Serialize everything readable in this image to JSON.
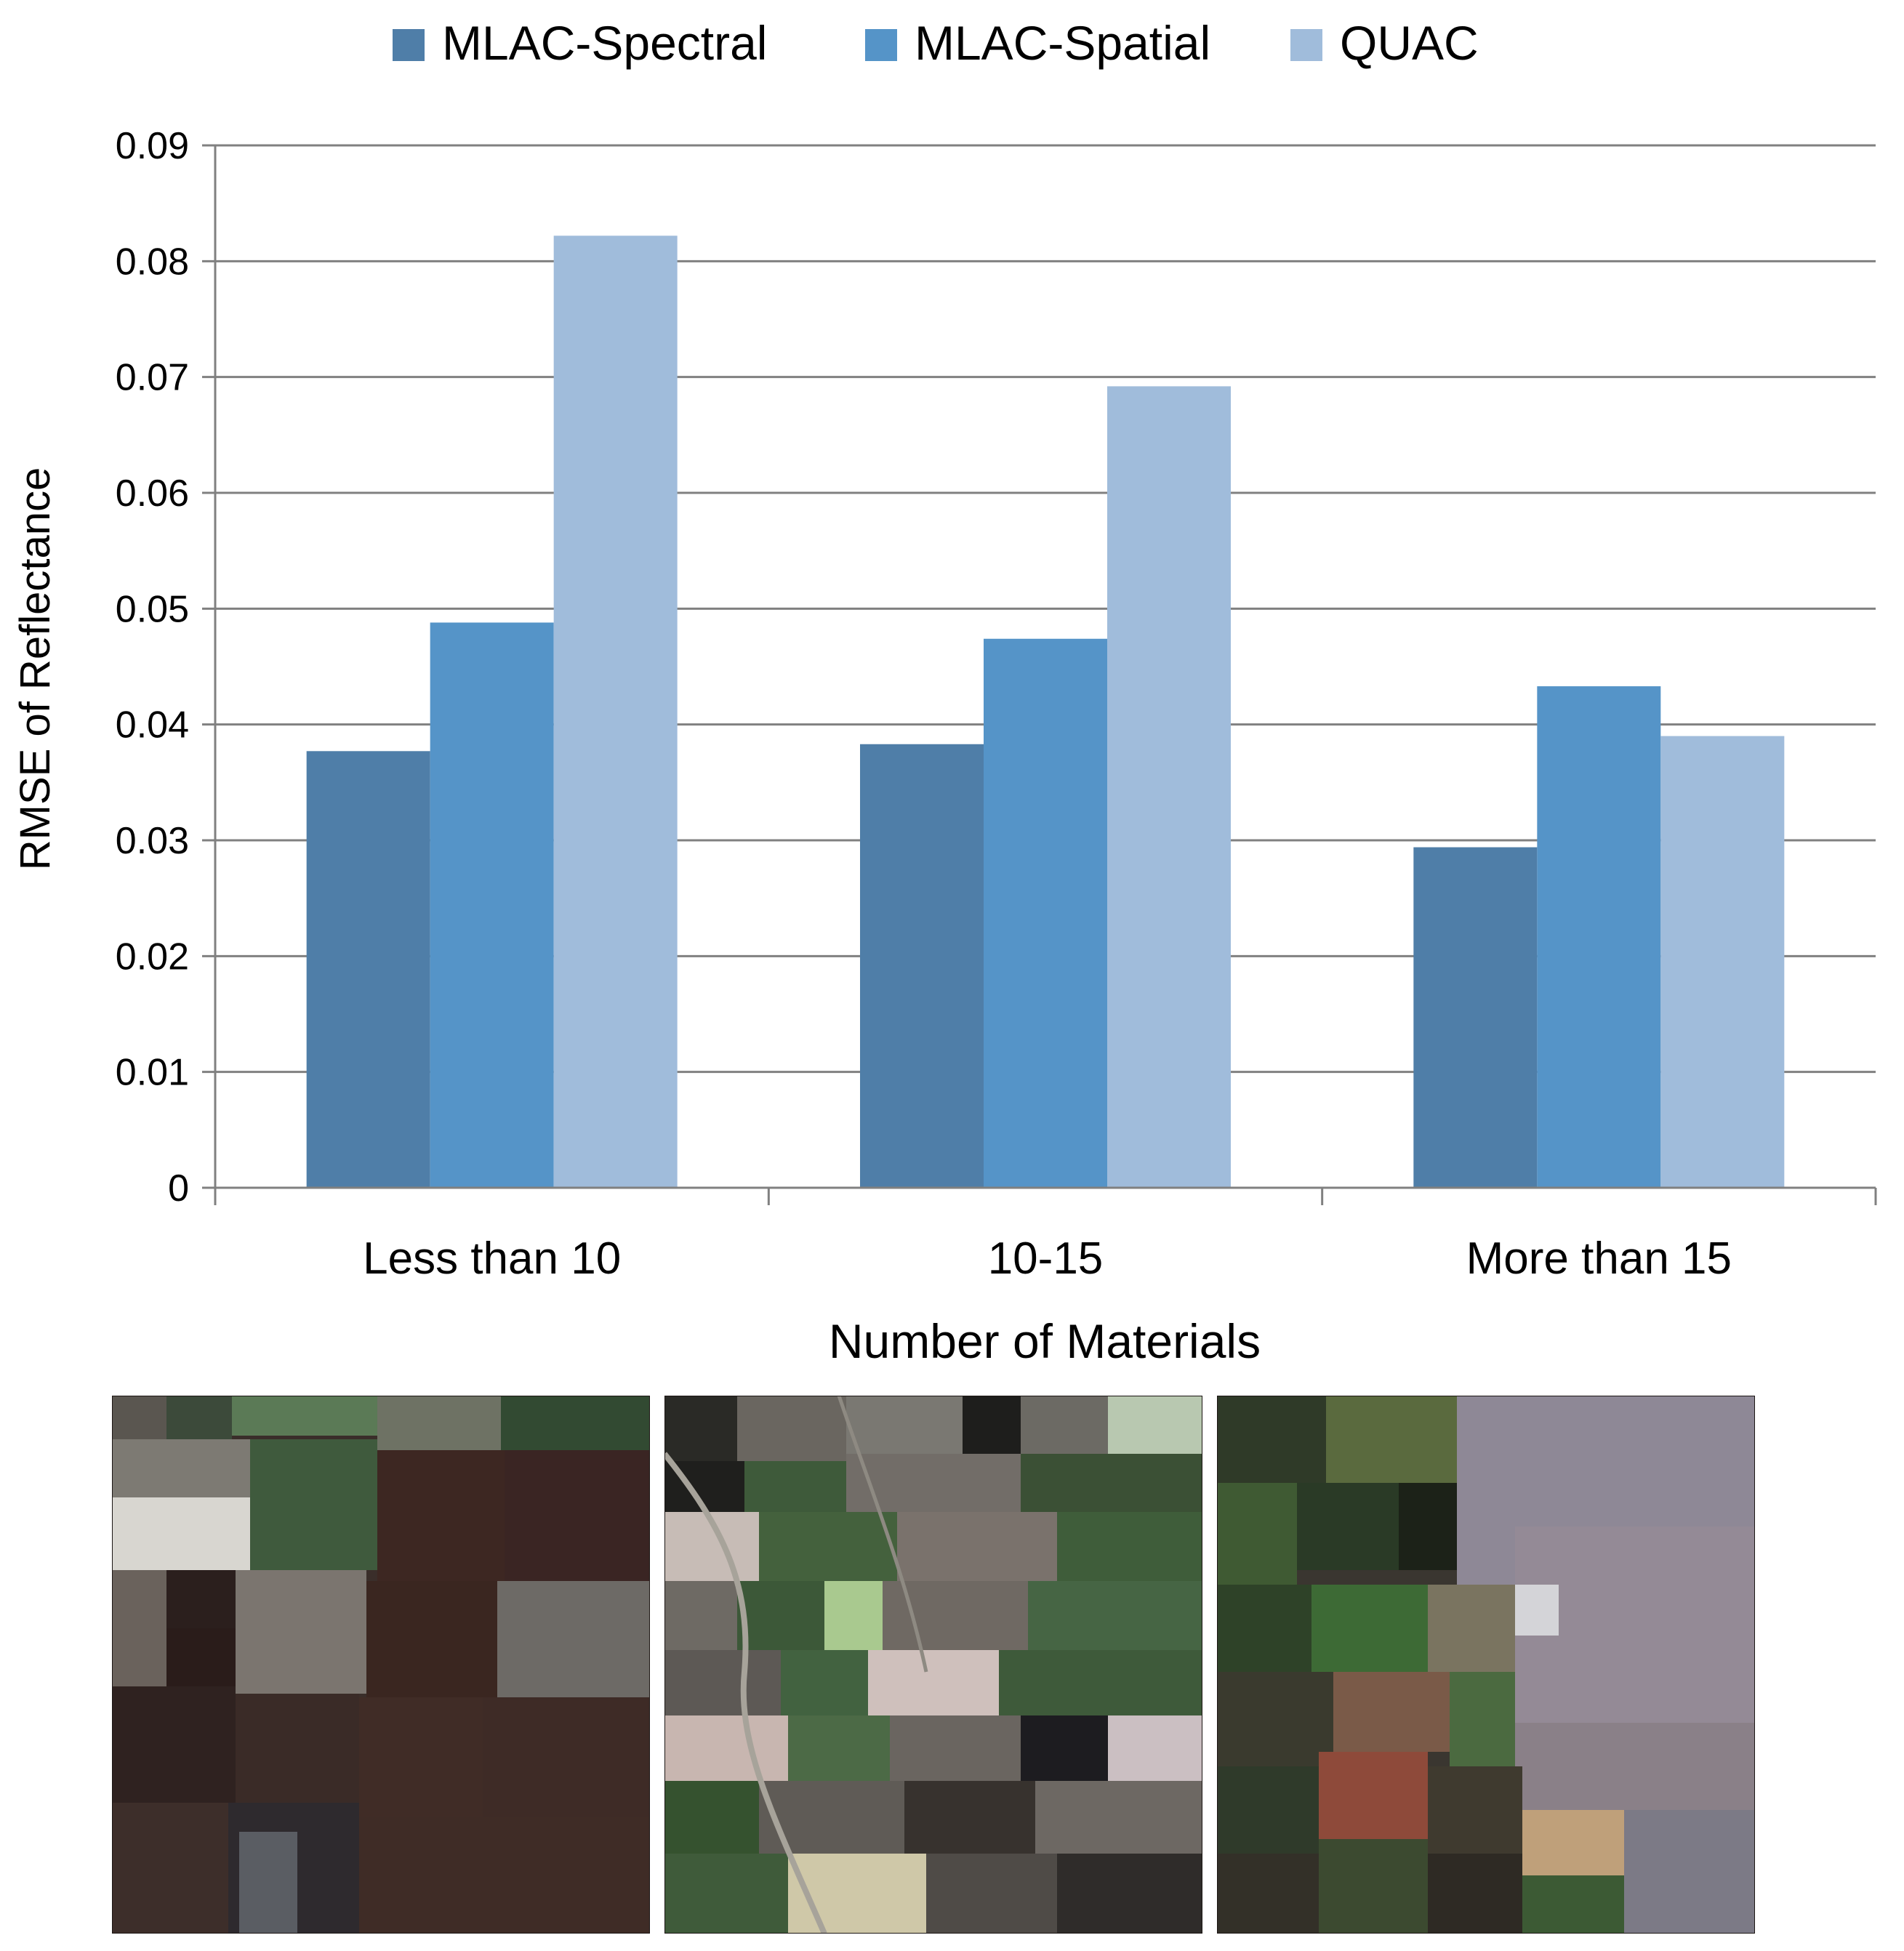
{
  "chart_data": {
    "type": "bar",
    "title": "",
    "xlabel": "Number of Materials",
    "ylabel": "RMSE of Reflectance",
    "categories": [
      "Less than 10",
      "10-15",
      "More than 15"
    ],
    "series": [
      {
        "name": "MLAC-Spectral",
        "color": "#4f7ea8",
        "values": [
          0.0377,
          0.0383,
          0.0294
        ]
      },
      {
        "name": "MLAC-Spatial",
        "color": "#5594c8",
        "values": [
          0.0488,
          0.0474,
          0.0433
        ]
      },
      {
        "name": "QUAC",
        "color": "#a0bcdb",
        "values": [
          0.0822,
          0.0692,
          0.039
        ]
      }
    ],
    "ylim": [
      0,
      0.09
    ],
    "yticks": [
      "0",
      "0.01",
      "0.02",
      "0.03",
      "0.04",
      "0.05",
      "0.06",
      "0.07",
      "0.08",
      "0.09"
    ],
    "grid": true,
    "legend_position": "top-center"
  },
  "scene_images": [
    {
      "category": "Less than 10",
      "icon": "farmland-image"
    },
    {
      "category": "10-15",
      "icon": "rural-fields-image"
    },
    {
      "category": "More than 15",
      "icon": "suburban-image"
    }
  ]
}
